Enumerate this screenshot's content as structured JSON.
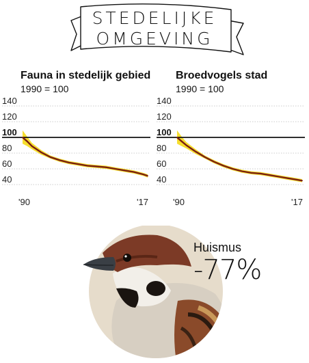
{
  "banner": {
    "line1": "STEDELIJKE",
    "line2": "OMGEVING"
  },
  "chart_data": [
    {
      "type": "line",
      "title": "Fauna in stedelijk gebied",
      "subtitle": "1990 = 100",
      "ylim": [
        40,
        140
      ],
      "yticks": [
        40,
        60,
        80,
        100,
        120,
        140
      ],
      "reference_line": 100,
      "xlim": [
        1990,
        2017
      ],
      "xtick_labels": [
        "'90",
        "'17"
      ],
      "x": [
        1990,
        1991,
        1992,
        1994,
        1996,
        1998,
        2000,
        2002,
        2004,
        2006,
        2008,
        2010,
        2012,
        2014,
        2016,
        2017
      ],
      "values": [
        100,
        95,
        89,
        81,
        75,
        71,
        68,
        66,
        64,
        63,
        62,
        60,
        58,
        56,
        53,
        51
      ],
      "lower": [
        92,
        89,
        85,
        78,
        73,
        69,
        66,
        64,
        62,
        61,
        60,
        58,
        56,
        54,
        51,
        49
      ],
      "upper": [
        109,
        101,
        93,
        84,
        77,
        73,
        70,
        68,
        66,
        65,
        64,
        62,
        60,
        58,
        55,
        53
      ],
      "colors": {
        "line": "#7a1f12",
        "band": "#f5d80a",
        "reference": "#111111",
        "grid": "#bbbbbb"
      }
    },
    {
      "type": "line",
      "title": "Broedvogels stad",
      "subtitle": "1990 = 100",
      "ylim": [
        40,
        140
      ],
      "yticks": [
        40,
        60,
        80,
        100,
        120,
        140
      ],
      "reference_line": 100,
      "xlim": [
        1990,
        2017
      ],
      "xtick_labels": [
        "'90",
        "'17"
      ],
      "x": [
        1990,
        1991,
        1992,
        1994,
        1996,
        1998,
        2000,
        2002,
        2004,
        2006,
        2008,
        2010,
        2012,
        2014,
        2016,
        2017
      ],
      "values": [
        100,
        95,
        90,
        82,
        75,
        69,
        64,
        60,
        57,
        55,
        54,
        52,
        50,
        48,
        46,
        45
      ],
      "lower": [
        92,
        89,
        86,
        79,
        73,
        67,
        62,
        58,
        55,
        53,
        52,
        50,
        48,
        46,
        44,
        43
      ],
      "upper": [
        109,
        101,
        94,
        85,
        77,
        71,
        66,
        62,
        59,
        57,
        56,
        54,
        52,
        50,
        48,
        47
      ],
      "colors": {
        "line": "#7a1f12",
        "band": "#f5d80a",
        "reference": "#111111",
        "grid": "#bbbbbb"
      }
    }
  ],
  "highlight": {
    "name": "Huismus",
    "value": "-77%"
  },
  "colors": {
    "circle": "#e6dccb",
    "text": "#111111"
  }
}
